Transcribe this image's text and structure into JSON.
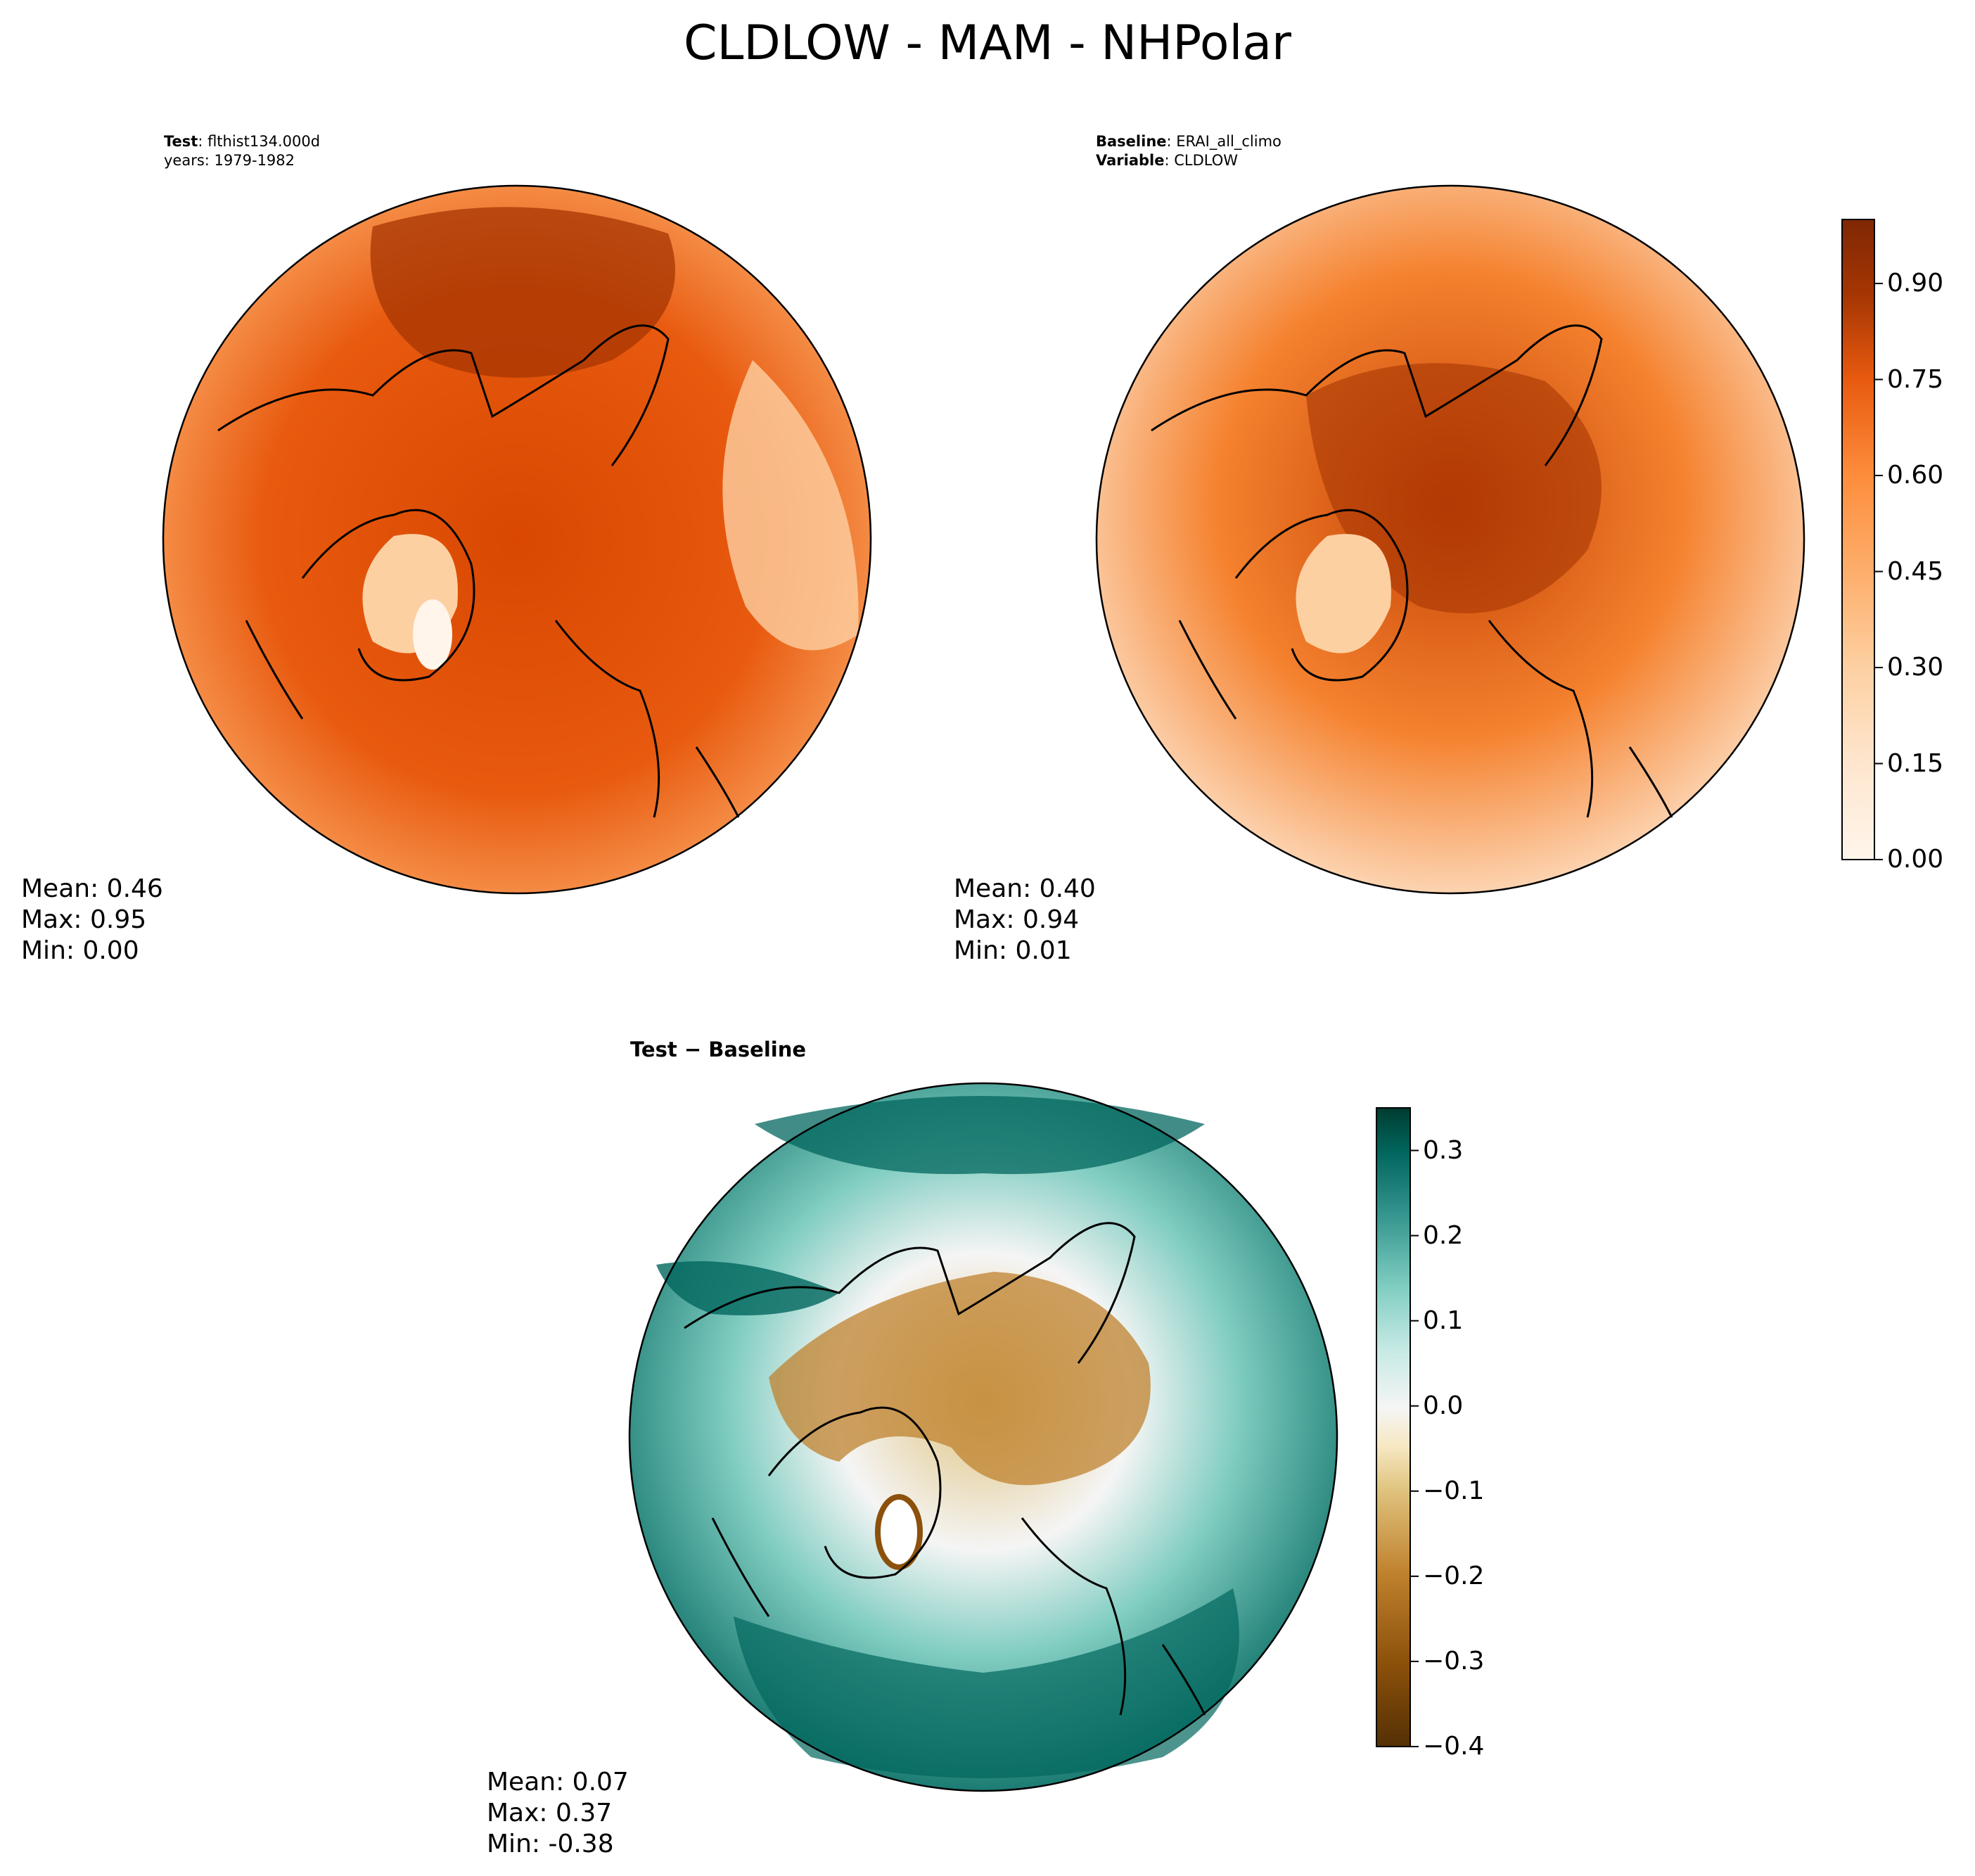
{
  "figure": {
    "title": "CLDLOW - MAM - NHPolar"
  },
  "panels": {
    "test": {
      "label_bold": "Test",
      "label_value": ": flthist134.000d",
      "line2": "years: 1979-1982",
      "stats": {
        "mean": "Mean:  0.46",
        "max": "Max:  0.95",
        "min": "Min:  0.00"
      }
    },
    "baseline": {
      "label_bold": "Baseline",
      "label_value": ": ERAI_all_climo",
      "line2_bold": "Variable",
      "line2_value": ": CLDLOW",
      "stats": {
        "mean": "Mean:  0.40",
        "max": "Max:  0.94",
        "min": "Min:  0.01"
      }
    },
    "diff": {
      "title": "Test − Baseline",
      "stats": {
        "mean": "Mean:  0.07",
        "max": "Max:  0.37",
        "min": "Min: -0.38"
      }
    }
  },
  "colorbars": {
    "main": {
      "range": [
        0.0,
        1.0
      ],
      "ticks": [
        "0.00",
        "0.15",
        "0.30",
        "0.45",
        "0.60",
        "0.75",
        "0.90"
      ],
      "colormap": "Oranges",
      "colors": [
        "#fff5eb",
        "#fee6ce",
        "#fdd0a2",
        "#fdae6b",
        "#fd8d3c",
        "#f16913",
        "#d94801",
        "#a63603",
        "#7f2704"
      ]
    },
    "diff": {
      "range": [
        -0.4,
        0.35
      ],
      "ticks": [
        "−0.4",
        "−0.3",
        "−0.2",
        "−0.1",
        "0.0",
        "0.1",
        "0.2",
        "0.3"
      ],
      "colormap": "BrBG",
      "colors": [
        "#543005",
        "#8c510a",
        "#bf812d",
        "#dfc27d",
        "#f6e8c3",
        "#f5f5f5",
        "#c7eae5",
        "#80cdc1",
        "#35978f",
        "#01665e",
        "#003c30"
      ]
    }
  }
}
